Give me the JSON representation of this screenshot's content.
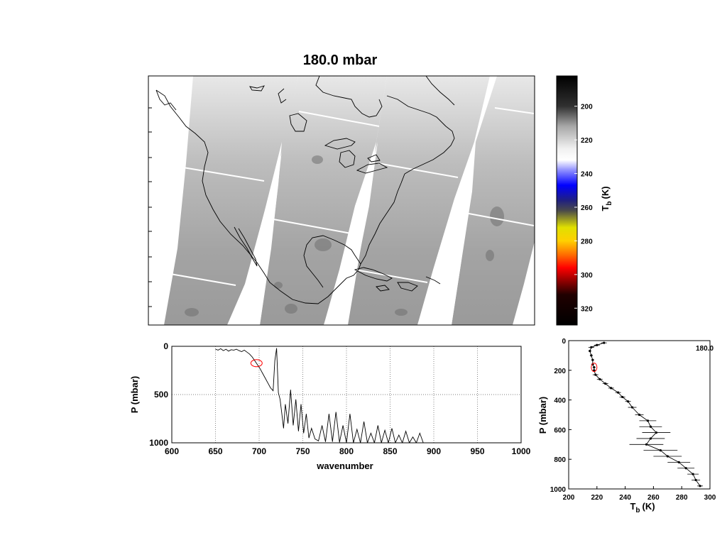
{
  "title": "180.0 mbar",
  "colorbar": {
    "label_main": "T",
    "label_sub": "b",
    "label_unit": "(K)",
    "ticks": [
      200,
      220,
      240,
      260,
      280,
      300,
      320
    ],
    "range": [
      182,
      330
    ],
    "stops": [
      {
        "value": 182,
        "color": "#000000"
      },
      {
        "value": 200,
        "color": "#303030"
      },
      {
        "value": 212,
        "color": "#a8a8a8"
      },
      {
        "value": 225,
        "color": "#f0f0f0"
      },
      {
        "value": 232,
        "color": "#ffffff"
      },
      {
        "value": 238,
        "color": "#9090ff"
      },
      {
        "value": 247,
        "color": "#0000ff"
      },
      {
        "value": 256,
        "color": "#202080"
      },
      {
        "value": 262,
        "color": "#4a4a4a"
      },
      {
        "value": 272,
        "color": "#e0e000"
      },
      {
        "value": 280,
        "color": "#ffd000"
      },
      {
        "value": 288,
        "color": "#ff7000"
      },
      {
        "value": 296,
        "color": "#ff0000"
      },
      {
        "value": 305,
        "color": "#800000"
      },
      {
        "value": 312,
        "color": "#200000"
      },
      {
        "value": 330,
        "color": "#000000"
      }
    ]
  },
  "chart_data": [
    {
      "type": "heatmap",
      "name": "map",
      "description_level": "180.0 mbar",
      "colors": {
        "swath_light": "#dcdcdc",
        "swath_dark": "#8f8f8f",
        "coast": "#000000"
      }
    },
    {
      "type": "line",
      "xlabel": "wavenumber",
      "ylabel": "P (mbar)",
      "xlim": [
        600,
        1000
      ],
      "ylim": [
        1000,
        0
      ],
      "xticks": [
        600,
        650,
        700,
        750,
        800,
        850,
        900,
        950,
        1000
      ],
      "yticks": [
        0,
        500,
        1000
      ],
      "grid": true,
      "highlight": {
        "x": 697,
        "y": 175,
        "color": "#ff0000"
      },
      "x": [
        650,
        653,
        656,
        659,
        662,
        665,
        668,
        671,
        674,
        677,
        680,
        683,
        686,
        689,
        692,
        695,
        698,
        701,
        704,
        707,
        710,
        713,
        716,
        718,
        720,
        722,
        724,
        726,
        728,
        730,
        733,
        736,
        739,
        742,
        745,
        748,
        751,
        754,
        757,
        760,
        764,
        768,
        772,
        776,
        780,
        784,
        788,
        792,
        796,
        800,
        804,
        808,
        812,
        816,
        820,
        824,
        828,
        832,
        836,
        840,
        844,
        848,
        852,
        856,
        860,
        864,
        868,
        872,
        876,
        880,
        884,
        888,
        900,
        920,
        950,
        1000
      ],
      "y": [
        30,
        40,
        25,
        45,
        30,
        50,
        35,
        40,
        30,
        45,
        55,
        40,
        60,
        80,
        110,
        150,
        190,
        230,
        280,
        330,
        380,
        430,
        460,
        150,
        20,
        480,
        550,
        700,
        850,
        600,
        800,
        450,
        820,
        550,
        880,
        600,
        900,
        700,
        950,
        850,
        960,
        980,
        820,
        990,
        700,
        990,
        680,
        995,
        820,
        1000,
        700,
        1000,
        860,
        1000,
        780,
        1000,
        900,
        1000,
        820,
        1000,
        870,
        1000,
        850,
        1000,
        920,
        1000,
        880,
        1000,
        940,
        1000,
        900,
        1000,
        1000,
        1000,
        1000,
        1000
      ]
    },
    {
      "type": "scatter",
      "xlabel_main": "T",
      "xlabel_sub": "b",
      "xlabel_unit": "(K)",
      "ylabel": "P (mbar)",
      "xlim": [
        200,
        300
      ],
      "ylim": [
        1000,
        0
      ],
      "xticks": [
        200,
        220,
        240,
        260,
        280,
        300
      ],
      "yticks": [
        0,
        200,
        400,
        600,
        800,
        1000
      ],
      "annotation": "180.0",
      "highlight": {
        "x": 218,
        "y": 180,
        "color": "#ff0000"
      },
      "points": [
        {
          "p": 15,
          "t": 225,
          "err": 2
        },
        {
          "p": 30,
          "t": 220,
          "err": 2
        },
        {
          "p": 45,
          "t": 216,
          "err": 2
        },
        {
          "p": 70,
          "t": 215,
          "err": 1
        },
        {
          "p": 100,
          "t": 216,
          "err": 1
        },
        {
          "p": 130,
          "t": 217,
          "err": 1
        },
        {
          "p": 160,
          "t": 217,
          "err": 1
        },
        {
          "p": 180,
          "t": 218,
          "err": 1
        },
        {
          "p": 200,
          "t": 218,
          "err": 1
        },
        {
          "p": 230,
          "t": 219,
          "err": 2
        },
        {
          "p": 260,
          "t": 222,
          "err": 2
        },
        {
          "p": 290,
          "t": 226,
          "err": 2
        },
        {
          "p": 320,
          "t": 230,
          "err": 2
        },
        {
          "p": 350,
          "t": 235,
          "err": 2
        },
        {
          "p": 380,
          "t": 238,
          "err": 2
        },
        {
          "p": 410,
          "t": 242,
          "err": 2
        },
        {
          "p": 450,
          "t": 245,
          "err": 3
        },
        {
          "p": 500,
          "t": 250,
          "err": 3
        },
        {
          "p": 540,
          "t": 256,
          "err": 6
        },
        {
          "p": 580,
          "t": 258,
          "err": 8
        },
        {
          "p": 620,
          "t": 262,
          "err": 10
        },
        {
          "p": 660,
          "t": 258,
          "err": 10
        },
        {
          "p": 700,
          "t": 255,
          "err": 12
        },
        {
          "p": 740,
          "t": 265,
          "err": 12
        },
        {
          "p": 780,
          "t": 270,
          "err": 10
        },
        {
          "p": 820,
          "t": 278,
          "err": 8
        },
        {
          "p": 860,
          "t": 283,
          "err": 6
        },
        {
          "p": 900,
          "t": 288,
          "err": 4
        },
        {
          "p": 940,
          "t": 290,
          "err": 3
        },
        {
          "p": 980,
          "t": 293,
          "err": 2
        }
      ]
    }
  ]
}
